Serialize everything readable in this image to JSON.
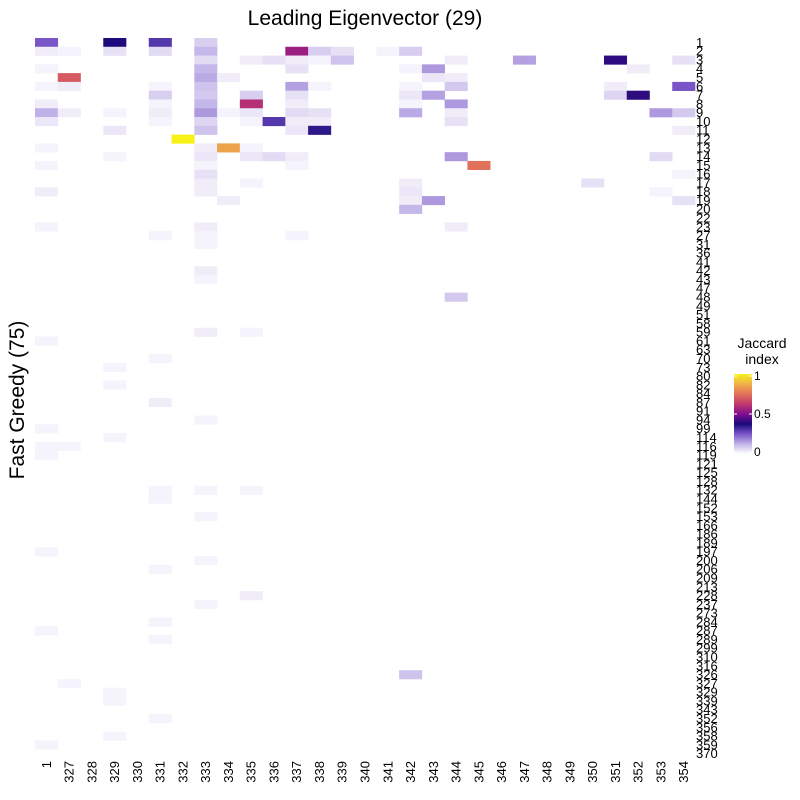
{
  "chart_data": {
    "type": "heatmap",
    "title": "Leading Eigenvector (29)",
    "xlabel": "",
    "ylabel": "Fast Greedy (75)",
    "x_categories": [
      "1",
      "327",
      "328",
      "329",
      "330",
      "331",
      "332",
      "333",
      "334",
      "335",
      "336",
      "337",
      "338",
      "339",
      "340",
      "341",
      "342",
      "343",
      "344",
      "345",
      "346",
      "347",
      "348",
      "349",
      "350",
      "351",
      "352",
      "353",
      "354"
    ],
    "y_categories": [
      "1",
      "2",
      "3",
      "4",
      "5",
      "6",
      "7",
      "8",
      "9",
      "10",
      "11",
      "12",
      "13",
      "14",
      "15",
      "16",
      "17",
      "18",
      "19",
      "20",
      "22",
      "23",
      "27",
      "31",
      "36",
      "41",
      "42",
      "43",
      "47",
      "48",
      "49",
      "51",
      "58",
      "59",
      "61",
      "63",
      "70",
      "73",
      "80",
      "82",
      "84",
      "87",
      "91",
      "94",
      "99",
      "114",
      "116",
      "119",
      "121",
      "125",
      "128",
      "132",
      "144",
      "152",
      "153",
      "166",
      "186",
      "189",
      "197",
      "200",
      "206",
      "209",
      "213",
      "228",
      "237",
      "273",
      "284",
      "287",
      "289",
      "299",
      "310",
      "316",
      "326",
      "327",
      "329",
      "339",
      "343",
      "352",
      "356",
      "358",
      "359",
      "370"
    ],
    "legend": {
      "title": "Jaccard index",
      "ticks": [
        "0",
        "0.5",
        "1"
      ],
      "range": [
        0,
        1
      ],
      "position": "right"
    },
    "colorscale": [
      "#ffffff",
      "#c2b4e8",
      "#7a55c8",
      "#1b0a7c",
      "#7f0e8f",
      "#c2386d",
      "#e1715a",
      "#f0b047",
      "#f7f118"
    ],
    "cells": [
      [
        0,
        0,
        0.25
      ],
      [
        3,
        0,
        0.38
      ],
      [
        5,
        0,
        0.3
      ],
      [
        7,
        0,
        0.08
      ],
      [
        0,
        1,
        0.03
      ],
      [
        1,
        1,
        0.02
      ],
      [
        3,
        1,
        0.05
      ],
      [
        5,
        1,
        0.06
      ],
      [
        7,
        1,
        0.12
      ],
      [
        11,
        1,
        0.55
      ],
      [
        12,
        1,
        0.08
      ],
      [
        13,
        1,
        0.05
      ],
      [
        15,
        1,
        0.02
      ],
      [
        16,
        1,
        0.08
      ],
      [
        7,
        2,
        0.06
      ],
      [
        9,
        2,
        0.03
      ],
      [
        10,
        2,
        0.05
      ],
      [
        11,
        2,
        0.03
      ],
      [
        12,
        2,
        0.02
      ],
      [
        13,
        2,
        0.1
      ],
      [
        18,
        2,
        0.03
      ],
      [
        21,
        2,
        0.15
      ],
      [
        25,
        2,
        0.4
      ],
      [
        28,
        2,
        0.05
      ],
      [
        0,
        3,
        0.02
      ],
      [
        7,
        3,
        0.12
      ],
      [
        11,
        3,
        0.05
      ],
      [
        16,
        3,
        0.02
      ],
      [
        17,
        3,
        0.16
      ],
      [
        26,
        3,
        0.03
      ],
      [
        1,
        4,
        0.7
      ],
      [
        7,
        4,
        0.14
      ],
      [
        8,
        4,
        0.03
      ],
      [
        17,
        4,
        0.04
      ],
      [
        18,
        4,
        0.03
      ],
      [
        0,
        5,
        0.02
      ],
      [
        1,
        5,
        0.03
      ],
      [
        5,
        5,
        0.02
      ],
      [
        7,
        5,
        0.1
      ],
      [
        11,
        5,
        0.15
      ],
      [
        12,
        5,
        0.02
      ],
      [
        16,
        5,
        0.02
      ],
      [
        18,
        5,
        0.09
      ],
      [
        25,
        5,
        0.03
      ],
      [
        28,
        5,
        0.25
      ],
      [
        5,
        6,
        0.08
      ],
      [
        7,
        6,
        0.09
      ],
      [
        9,
        6,
        0.08
      ],
      [
        11,
        6,
        0.05
      ],
      [
        16,
        6,
        0.04
      ],
      [
        17,
        6,
        0.15
      ],
      [
        25,
        6,
        0.07
      ],
      [
        26,
        6,
        0.4
      ],
      [
        0,
        7,
        0.03
      ],
      [
        5,
        7,
        0.02
      ],
      [
        7,
        7,
        0.12
      ],
      [
        9,
        7,
        0.6
      ],
      [
        11,
        7,
        0.03
      ],
      [
        16,
        7,
        0.02
      ],
      [
        18,
        7,
        0.16
      ],
      [
        0,
        8,
        0.13
      ],
      [
        1,
        8,
        0.03
      ],
      [
        3,
        8,
        0.02
      ],
      [
        5,
        8,
        0.03
      ],
      [
        7,
        8,
        0.16
      ],
      [
        8,
        8,
        0.02
      ],
      [
        9,
        8,
        0.04
      ],
      [
        11,
        8,
        0.06
      ],
      [
        12,
        8,
        0.05
      ],
      [
        16,
        8,
        0.14
      ],
      [
        18,
        8,
        0.03
      ],
      [
        27,
        8,
        0.16
      ],
      [
        28,
        8,
        0.09
      ],
      [
        0,
        9,
        0.04
      ],
      [
        5,
        9,
        0.02
      ],
      [
        7,
        9,
        0.07
      ],
      [
        9,
        9,
        0.02
      ],
      [
        10,
        9,
        0.3
      ],
      [
        11,
        9,
        0.03
      ],
      [
        12,
        9,
        0.03
      ],
      [
        18,
        9,
        0.05
      ],
      [
        3,
        10,
        0.04
      ],
      [
        7,
        10,
        0.1
      ],
      [
        11,
        10,
        0.04
      ],
      [
        12,
        10,
        0.35
      ],
      [
        28,
        10,
        0.03
      ],
      [
        6,
        11,
        1.0
      ],
      [
        0,
        12,
        0.02
      ],
      [
        7,
        12,
        0.03
      ],
      [
        8,
        12,
        0.85
      ],
      [
        9,
        12,
        0.02
      ],
      [
        3,
        13,
        0.02
      ],
      [
        7,
        13,
        0.04
      ],
      [
        9,
        13,
        0.04
      ],
      [
        10,
        13,
        0.06
      ],
      [
        11,
        13,
        0.03
      ],
      [
        18,
        13,
        0.16
      ],
      [
        27,
        13,
        0.06
      ],
      [
        0,
        14,
        0.02
      ],
      [
        7,
        14,
        0.02
      ],
      [
        11,
        14,
        0.02
      ],
      [
        19,
        14,
        0.75
      ],
      [
        7,
        15,
        0.05
      ],
      [
        28,
        15,
        0.02
      ],
      [
        7,
        16,
        0.03
      ],
      [
        9,
        16,
        0.02
      ],
      [
        16,
        16,
        0.03
      ],
      [
        24,
        16,
        0.05
      ],
      [
        0,
        17,
        0.03
      ],
      [
        7,
        17,
        0.03
      ],
      [
        16,
        17,
        0.04
      ],
      [
        27,
        17,
        0.02
      ],
      [
        8,
        18,
        0.03
      ],
      [
        16,
        18,
        0.03
      ],
      [
        17,
        18,
        0.16
      ],
      [
        28,
        18,
        0.05
      ],
      [
        16,
        19,
        0.12
      ],
      [
        0,
        21,
        0.02
      ],
      [
        7,
        21,
        0.03
      ],
      [
        18,
        21,
        0.03
      ],
      [
        5,
        22,
        0.02
      ],
      [
        7,
        22,
        0.02
      ],
      [
        11,
        22,
        0.02
      ],
      [
        7,
        23,
        0.02
      ],
      [
        7,
        26,
        0.03
      ],
      [
        7,
        27,
        0.02
      ],
      [
        18,
        29,
        0.09
      ],
      [
        7,
        33,
        0.03
      ],
      [
        9,
        33,
        0.02
      ],
      [
        0,
        34,
        0.02
      ],
      [
        5,
        36,
        0.02
      ],
      [
        3,
        37,
        0.02
      ],
      [
        3,
        39,
        0.02
      ],
      [
        5,
        41,
        0.03
      ],
      [
        7,
        43,
        0.02
      ],
      [
        0,
        44,
        0.02
      ],
      [
        3,
        45,
        0.02
      ],
      [
        0,
        46,
        0.02
      ],
      [
        1,
        46,
        0.02
      ],
      [
        0,
        47,
        0.02
      ],
      [
        5,
        51,
        0.02
      ],
      [
        7,
        51,
        0.02
      ],
      [
        9,
        51,
        0.02
      ],
      [
        5,
        52,
        0.02
      ],
      [
        7,
        54,
        0.02
      ],
      [
        0,
        58,
        0.02
      ],
      [
        7,
        59,
        0.02
      ],
      [
        5,
        60,
        0.02
      ],
      [
        9,
        63,
        0.03
      ],
      [
        7,
        64,
        0.02
      ],
      [
        5,
        66,
        0.02
      ],
      [
        0,
        67,
        0.02
      ],
      [
        5,
        68,
        0.02
      ],
      [
        16,
        72,
        0.1
      ],
      [
        1,
        73,
        0.02
      ],
      [
        3,
        74,
        0.02
      ],
      [
        3,
        75,
        0.02
      ],
      [
        5,
        77,
        0.02
      ],
      [
        3,
        79,
        0.02
      ],
      [
        0,
        80,
        0.02
      ]
    ]
  }
}
